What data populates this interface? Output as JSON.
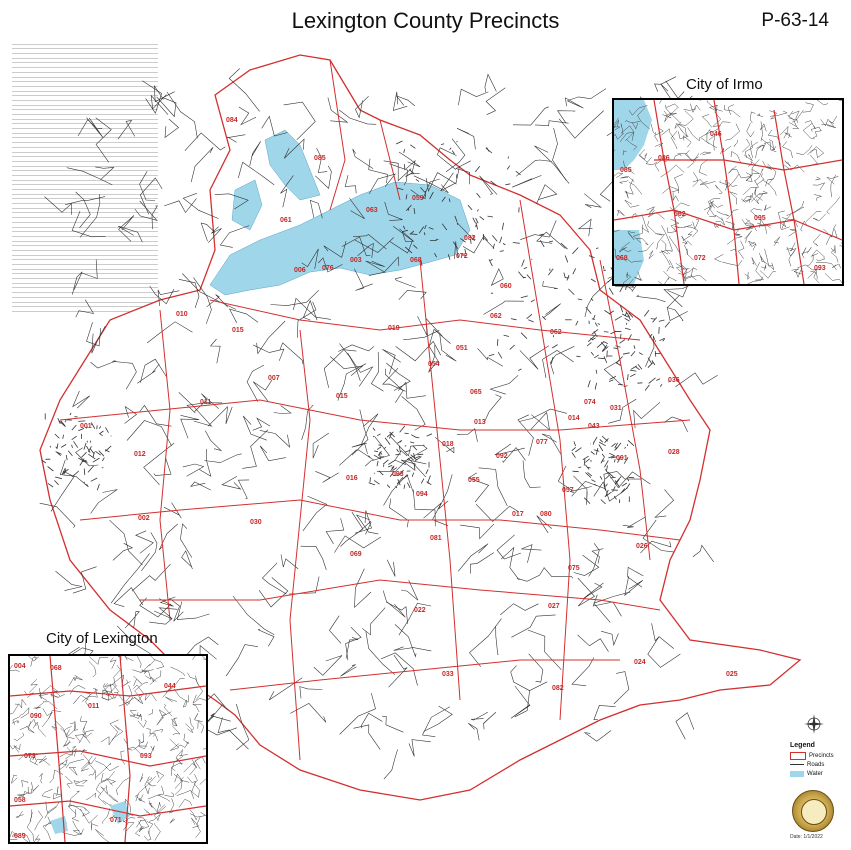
{
  "header": {
    "title": "Lexington County Precincts",
    "map_code": "P-63-14"
  },
  "insets": {
    "irmo_title": "City of Irmo",
    "lexington_title": "City of Lexington",
    "irmo_labels": [
      "046",
      "086",
      "062",
      "072",
      "068",
      "085",
      "095",
      "093"
    ],
    "lexington_labels": [
      "004",
      "068",
      "090",
      "073",
      "093",
      "058",
      "071",
      "089",
      "044",
      "011"
    ]
  },
  "precinct_labels": [
    "084",
    "085",
    "061",
    "063",
    "059",
    "006",
    "076",
    "003",
    "068",
    "072",
    "082",
    "010",
    "015",
    "019",
    "007",
    "001",
    "011",
    "012",
    "015",
    "016",
    "002",
    "030",
    "069",
    "081",
    "022",
    "027",
    "033",
    "080",
    "082",
    "025",
    "024",
    "026",
    "075",
    "028",
    "091",
    "031",
    "074",
    "036",
    "014",
    "043",
    "077",
    "092",
    "093",
    "018",
    "017",
    "057",
    "094",
    "055",
    "054",
    "051",
    "060",
    "062",
    "065",
    "013",
    "062"
  ],
  "legend": {
    "title": "Legend",
    "items": [
      {
        "label": "Precincts",
        "color": "#d32f2f"
      },
      {
        "label": "Roads",
        "color": "#333333"
      },
      {
        "label": "Water",
        "color": "#9fd6ea"
      }
    ]
  },
  "colors": {
    "water": "#9fd6ea",
    "precinct_border": "#d32f2f",
    "road": "#333333"
  },
  "date_text": "Date: 1/1/2022"
}
